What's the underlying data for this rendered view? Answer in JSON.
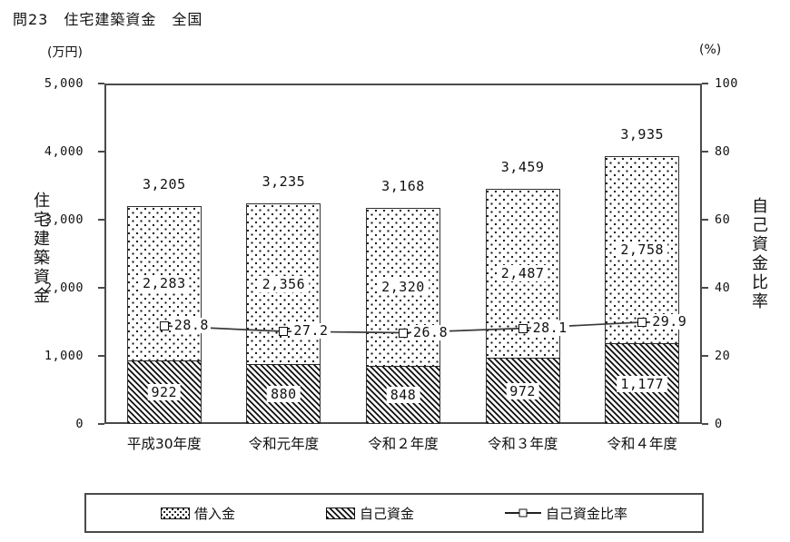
{
  "title": "問23　住宅建築資金　全国",
  "axes": {
    "left": {
      "unit": "(万円)",
      "title": "住宅建築資金",
      "tick_labels": [
        "5,000",
        "4,000",
        "3,000",
        "2,000",
        "1,000",
        "0"
      ],
      "range": [
        0,
        5000
      ]
    },
    "right": {
      "unit": "(%)",
      "title": "自己資金比率",
      "tick_labels": [
        "100",
        "80",
        "60",
        "40",
        "20",
        "0"
      ],
      "range": [
        0,
        100
      ]
    }
  },
  "legend": {
    "items": [
      {
        "label": "借入金",
        "swatch": "dots-box"
      },
      {
        "label": "自己資金",
        "swatch": "hatch-box"
      },
      {
        "label": "自己資金比率",
        "swatch": "line-open-square-marker"
      }
    ],
    "position": "bottom"
  },
  "colors": {
    "ink": "#111111",
    "frame": "#4a4a4a",
    "bar_fill": "#ffffff",
    "pattern": "#101010"
  },
  "chart_data": {
    "type": "bar",
    "subtype": "stacked-bar-with-line-combo",
    "categories": [
      "平成30年度",
      "令和元年度",
      "令和２年度",
      "令和３年度",
      "令和４年度"
    ],
    "series": [
      {
        "name": "借入金",
        "type": "bar",
        "stack_position": "top",
        "pattern": "dots",
        "values": [
          2283,
          2356,
          2320,
          2487,
          2758
        ],
        "labels": [
          "2,283",
          "2,356",
          "2,320",
          "2,487",
          "2,758"
        ]
      },
      {
        "name": "自己資金",
        "type": "bar",
        "stack_position": "bottom",
        "pattern": "hatch",
        "values": [
          922,
          880,
          848,
          972,
          1177
        ],
        "labels": [
          "922",
          "880",
          "848",
          "972",
          "1,177"
        ]
      },
      {
        "name": "自己資金比率",
        "type": "line",
        "axis": "right",
        "marker": "open-square",
        "values": [
          28.8,
          27.2,
          26.8,
          28.1,
          29.9
        ],
        "labels": [
          "28.8",
          "27.2",
          "26.8",
          "28.1",
          "29.9"
        ]
      }
    ],
    "totals": {
      "values": [
        3205,
        3235,
        3168,
        3459,
        3935
      ],
      "labels": [
        "3,205",
        "3,235",
        "3,168",
        "3,459",
        "3,935"
      ]
    },
    "left_axis_range": [
      0,
      5000
    ],
    "right_axis_range": [
      0,
      100
    ],
    "grid": false,
    "legend_position": "bottom",
    "xlabel": "",
    "ylabel_left": "住宅建築資金",
    "ylabel_right": "自己資金比率"
  }
}
